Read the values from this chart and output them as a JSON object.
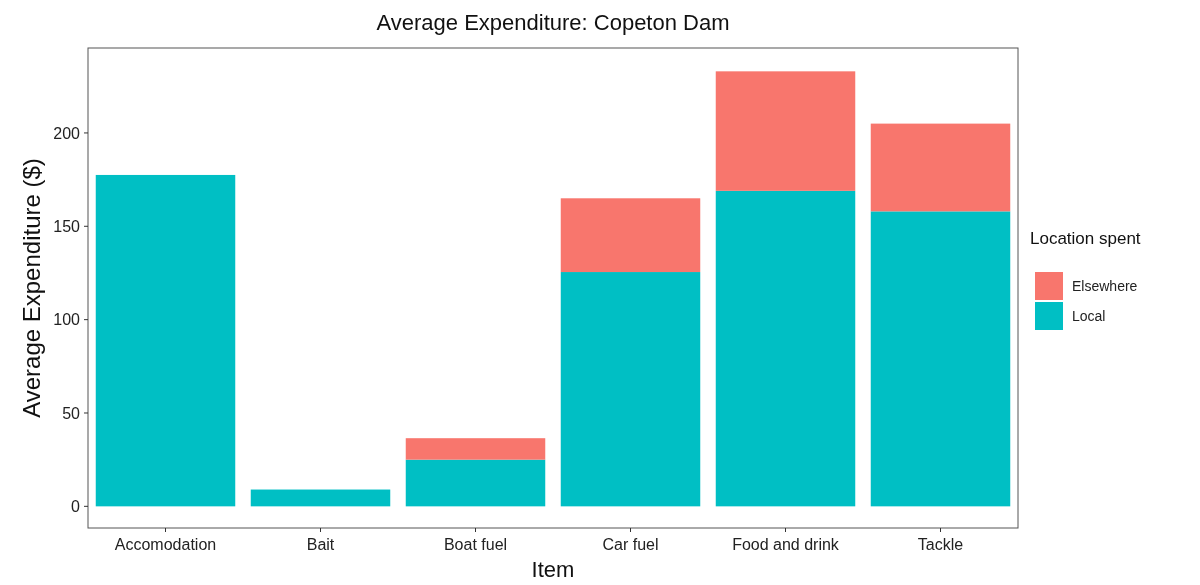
{
  "chart_data": {
    "type": "bar",
    "title": "Average Expenditure: Copeton Dam",
    "xlabel": "Item",
    "ylabel": "Average Expenditure ($)",
    "legend_title": "Location spent",
    "categories": [
      "Accomodation",
      "Bait",
      "Boat fuel",
      "Car fuel",
      "Food and drink",
      "Tackle"
    ],
    "series": [
      {
        "name": "Local",
        "color": "#00bfc4",
        "values": [
          177.5,
          9,
          25,
          125.5,
          169,
          158
        ]
      },
      {
        "name": "Elsewhere",
        "color": "#f8766d",
        "values": [
          0,
          0,
          11.5,
          39.5,
          64,
          47
        ]
      }
    ],
    "stacked": true,
    "ylim": [
      -11.6,
      245.5
    ],
    "yticks": [
      0,
      50,
      100,
      150,
      200
    ],
    "grid": false,
    "legend": "right"
  }
}
